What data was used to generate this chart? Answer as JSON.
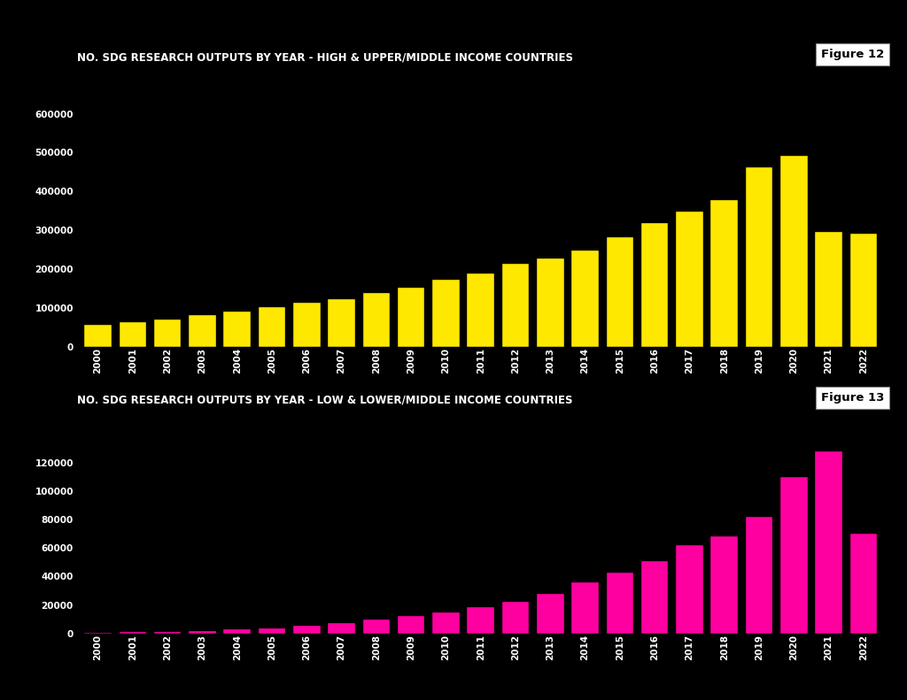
{
  "years": [
    "2000",
    "2001",
    "2002",
    "2003",
    "2004",
    "2005",
    "2006",
    "2007",
    "2008",
    "2009",
    "2010",
    "2011",
    "2012",
    "2013",
    "2014",
    "2015",
    "2016",
    "2017",
    "2018",
    "2019",
    "2020",
    "2021",
    "2022"
  ],
  "high_income_values": [
    55000,
    62000,
    70000,
    80000,
    90000,
    102000,
    112000,
    122000,
    138000,
    152000,
    172000,
    188000,
    213000,
    228000,
    248000,
    282000,
    318000,
    348000,
    378000,
    462000,
    492000,
    295000,
    292000
  ],
  "low_income_values": [
    500,
    900,
    1200,
    1800,
    2800,
    3800,
    5500,
    7500,
    10000,
    12500,
    15000,
    18500,
    22000,
    28000,
    36000,
    43000,
    51000,
    62000,
    68000,
    82000,
    110000,
    128000,
    70000
  ],
  "high_bar_color": "#FFE800",
  "low_bar_color": "#FF00A0",
  "background_color": "#000000",
  "text_color": "#FFFFFF",
  "fig_label_bg": "#FFFFFF",
  "fig_label_text": "#000000",
  "title1": "NO. SDG RESEARCH OUTPUTS BY YEAR - HIGH & UPPER/MIDDLE INCOME COUNTRIES",
  "title2": "NO. SDG RESEARCH OUTPUTS BY YEAR - LOW & LOWER/MIDDLE INCOME COUNTRIES",
  "figure_label1": "Figure 12",
  "figure_label2": "Figure 13",
  "ylim1": [
    0,
    650000
  ],
  "ylim2": [
    0,
    140000
  ],
  "yticks1": [
    0,
    100000,
    200000,
    300000,
    400000,
    500000,
    600000
  ],
  "yticks2": [
    0,
    20000,
    40000,
    60000,
    80000,
    100000,
    120000
  ]
}
